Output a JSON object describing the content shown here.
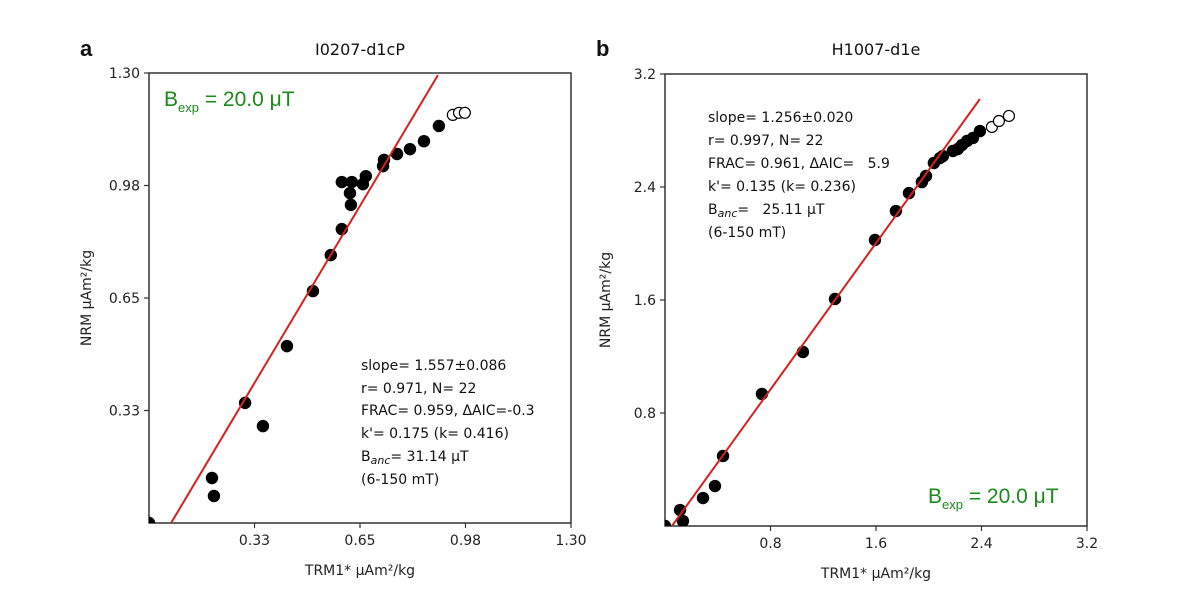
{
  "chart_data": [
    {
      "type": "scatter",
      "panel_label": "a",
      "title": "I0207-d1cP",
      "xlabel": "TRM1* μAm²/kg",
      "ylabel": "NRM μAm²/kg",
      "xlim": [
        0,
        1.3
      ],
      "ylim": [
        0,
        1.3
      ],
      "xticks": [
        "0.33",
        "0.65",
        "0.98",
        "1.30"
      ],
      "xtick_values": [
        0.325,
        0.65,
        0.975,
        1.3
      ],
      "yticks": [
        "0.33",
        "0.65",
        "0.98",
        "1.30"
      ],
      "ytick_values": [
        0.325,
        0.65,
        0.975,
        1.3
      ],
      "filled_points": [
        [
          0.0,
          0.0
        ],
        [
          0.194,
          0.13
        ],
        [
          0.2,
          0.078
        ],
        [
          0.296,
          0.347
        ],
        [
          0.351,
          0.28
        ],
        [
          0.425,
          0.511
        ],
        [
          0.505,
          0.67
        ],
        [
          0.56,
          0.774
        ],
        [
          0.594,
          0.849
        ],
        [
          0.594,
          0.985
        ],
        [
          0.625,
          0.985
        ],
        [
          0.619,
          0.953
        ],
        [
          0.622,
          0.919
        ],
        [
          0.659,
          0.979
        ],
        [
          0.668,
          1.002
        ],
        [
          0.721,
          1.031
        ],
        [
          0.724,
          1.049
        ],
        [
          0.764,
          1.066
        ],
        [
          0.804,
          1.08
        ],
        [
          0.847,
          1.103
        ],
        [
          0.893,
          1.147
        ]
      ],
      "open_points": [
        [
          0.936,
          1.179
        ],
        [
          0.955,
          1.185
        ],
        [
          0.973,
          1.185
        ]
      ],
      "fit_line": [
        [
          0.068,
          0.0
        ],
        [
          0.89,
          1.294
        ]
      ],
      "stats": [
        "slope= 1.557±0.086",
        "r= 0.971, N= 22",
        "FRAC= 0.959, ΔAIC=-0.3",
        "k'= 0.175 (k= 0.416)"
      ],
      "banc_label": "B",
      "banc_sub": "anc",
      "banc_value": "=   31.14 μT",
      "range_text": "(6-150 mT)",
      "bexp_label": "B",
      "bexp_sub": "exp",
      "bexp_value": " = 20.0 μT",
      "colors": {
        "fit": "#d62020",
        "bexp": "#1a8a1a",
        "points": "#000000"
      }
    },
    {
      "type": "scatter",
      "panel_label": "b",
      "title": "H1007-d1e",
      "xlabel": "TRM1* μAm²/kg",
      "ylabel": "NRM μAm²/kg",
      "xlim": [
        0,
        3.2
      ],
      "ylim": [
        0,
        3.2
      ],
      "xticks": [
        "0.8",
        "1.6",
        "2.4",
        "3.2"
      ],
      "xtick_values": [
        0.8,
        1.6,
        2.4,
        3.2
      ],
      "yticks": [
        "0.8",
        "1.6",
        "2.4",
        "3.2"
      ],
      "ytick_values": [
        0.8,
        1.6,
        2.4,
        3.2
      ],
      "filled_points": [
        [
          0.0,
          0.0
        ],
        [
          0.114,
          0.113
        ],
        [
          0.136,
          0.035
        ],
        [
          0.288,
          0.198
        ],
        [
          0.379,
          0.283
        ],
        [
          0.44,
          0.496
        ],
        [
          0.735,
          0.935
        ],
        [
          1.046,
          1.232
        ],
        [
          1.289,
          1.607
        ],
        [
          1.592,
          2.025
        ],
        [
          1.751,
          2.23
        ],
        [
          1.85,
          2.357
        ],
        [
          1.948,
          2.435
        ],
        [
          1.979,
          2.478
        ],
        [
          2.039,
          2.57
        ],
        [
          2.085,
          2.605
        ],
        [
          2.107,
          2.619
        ],
        [
          2.183,
          2.655
        ],
        [
          2.221,
          2.669
        ],
        [
          2.252,
          2.697
        ],
        [
          2.29,
          2.726
        ],
        [
          2.335,
          2.747
        ],
        [
          2.388,
          2.796
        ]
      ],
      "open_points": [
        [
          2.479,
          2.825
        ],
        [
          2.532,
          2.867
        ],
        [
          2.608,
          2.903
        ]
      ],
      "fit_line": [
        [
          0.053,
          0.0
        ],
        [
          2.388,
          3.023
        ]
      ],
      "stats": [
        "slope= 1.256±0.020",
        "r= 0.997, N= 22",
        "FRAC= 0.961, ΔAIC=   5.9",
        "k'= 0.135 (k= 0.236)"
      ],
      "banc_label": "B",
      "banc_sub": "anc",
      "banc_value": "=   25.11 μT",
      "range_text": "(6-150 mT)",
      "bexp_label": "B",
      "bexp_sub": "exp",
      "bexp_value": " = 20.0 μT",
      "colors": {
        "fit": "#d62020",
        "bexp": "#1a8a1a",
        "points": "#000000"
      }
    }
  ]
}
